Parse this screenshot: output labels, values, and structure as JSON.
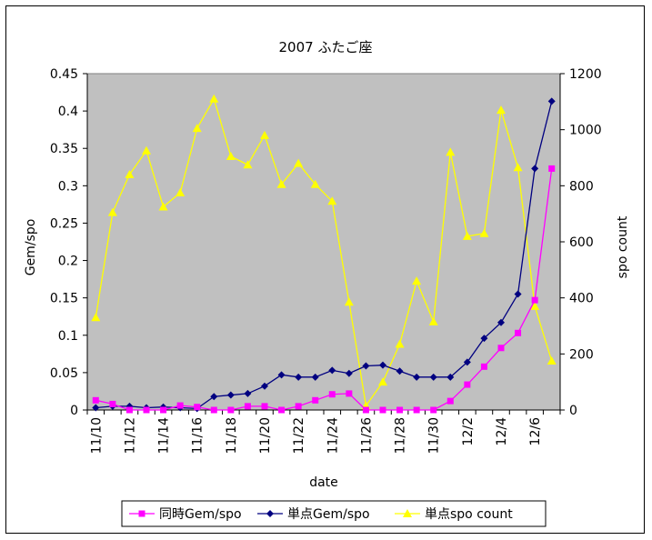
{
  "chart_data": {
    "type": "line",
    "title": "2007 ふたご座",
    "xlabel": "date",
    "ylabel": "Gem/spo",
    "y2label": "spo count",
    "categories": [
      "11/10",
      "11/11",
      "11/12",
      "11/13",
      "11/14",
      "11/15",
      "11/16",
      "11/17",
      "11/18",
      "11/19",
      "11/20",
      "11/21",
      "11/22",
      "11/23",
      "11/24",
      "11/25",
      "11/26",
      "11/27",
      "11/28",
      "11/29",
      "11/30",
      "12/1",
      "12/2",
      "12/3",
      "12/4",
      "12/5",
      "12/6",
      "12/7"
    ],
    "x_tick_labels": [
      "11/10",
      "11/12",
      "11/14",
      "11/16",
      "11/18",
      "11/20",
      "11/22",
      "11/24",
      "11/26",
      "11/28",
      "11/30",
      "12/2",
      "12/4",
      "12/6"
    ],
    "ylim": [
      0,
      0.45
    ],
    "y_ticks": [
      "0",
      "0.05",
      "0.1",
      "0.15",
      "0.2",
      "0.25",
      "0.3",
      "0.35",
      "0.4",
      "0.45"
    ],
    "y2lim": [
      0,
      1200
    ],
    "y2_ticks": [
      "0",
      "200",
      "400",
      "600",
      "800",
      "1000",
      "1200"
    ],
    "plot_background": "#c0c0c0",
    "grid": false,
    "legend_position": "bottom",
    "series": [
      {
        "name": "同時Gem/spo",
        "axis": "left",
        "color": "#ff00ff",
        "marker": "square",
        "values": [
          0.013,
          0.008,
          0.0,
          0.0,
          0.0,
          0.006,
          0.004,
          0.0,
          0.0,
          0.005,
          0.005,
          0.0,
          0.005,
          0.013,
          0.021,
          0.022,
          0.0,
          0.0,
          0.0,
          0.0,
          0.0,
          0.012,
          0.034,
          0.058,
          0.083,
          0.103,
          0.147,
          0.323
        ]
      },
      {
        "name": "単点Gem/spo",
        "axis": "left",
        "color": "#000080",
        "marker": "diamond",
        "values": [
          0.003,
          0.005,
          0.005,
          0.003,
          0.004,
          0.003,
          0.002,
          0.018,
          0.02,
          0.022,
          0.032,
          0.047,
          0.044,
          0.044,
          0.053,
          0.049,
          0.059,
          0.06,
          0.052,
          0.044,
          0.044,
          0.044,
          0.064,
          0.096,
          0.117,
          0.155,
          0.323,
          0.413
        ]
      },
      {
        "name": "単点spo count",
        "axis": "right",
        "color": "#ffff00",
        "marker": "triangle",
        "values": [
          330,
          705,
          840,
          925,
          725,
          775,
          1005,
          1110,
          905,
          875,
          980,
          805,
          880,
          805,
          745,
          385,
          15,
          100,
          235,
          460,
          315,
          920,
          620,
          630,
          1070,
          865,
          370,
          175
        ]
      }
    ]
  }
}
